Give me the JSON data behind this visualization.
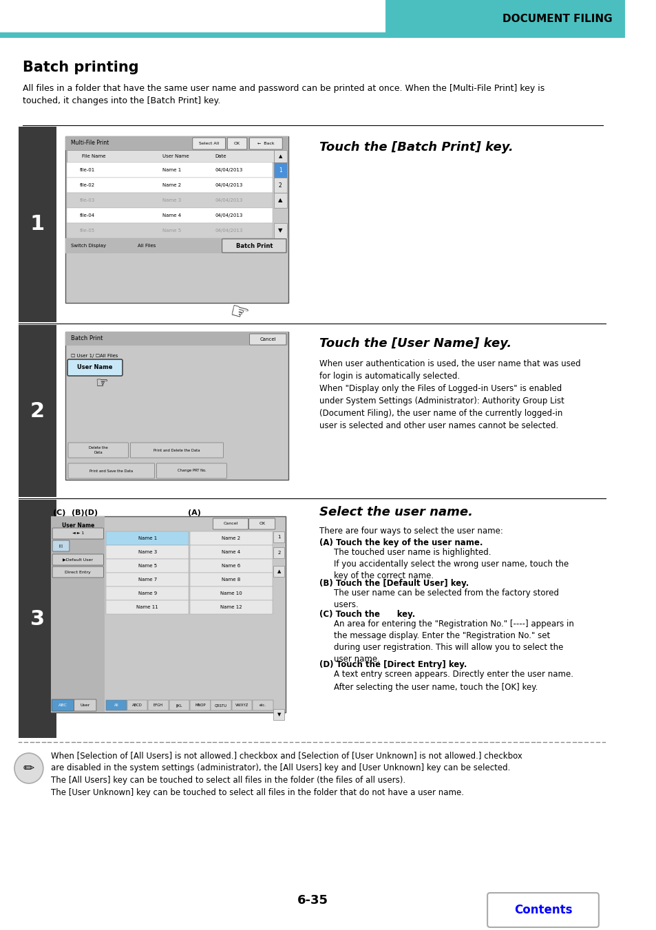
{
  "page_title": "DOCUMENT FILING",
  "header_bar_color": "#4BBFBF",
  "title": "Batch printing",
  "intro_text": "All files in a folder that have the same user name and password can be printed at once. When the [Multi-File Print] key is\ntouched, it changes into the [Batch Print] key.",
  "step1_num": "1",
  "step1_instruction": "Touch the [Batch Print] key.",
  "step2_num": "2",
  "step2_instruction": "Touch the [User Name] key.",
  "step2_detail": "When user authentication is used, the user name that was used\nfor login is automatically selected.\nWhen \"Display only the Files of Logged-in Users\" is enabled\nunder System Settings (Administrator): Authority Group List\n(Document Filing), the user name of the currently logged-in\nuser is selected and other user names cannot be selected.",
  "step3_num": "3",
  "step3_instruction": "Select the user name.",
  "step3_detail_intro": "There are four ways to select the user name:",
  "step3_A_title": "(A) Touch the key of the user name.",
  "step3_A_detail": "The touched user name is highlighted.\nIf you accidentally select the wrong user name, touch the\nkey of the correct name.",
  "step3_B_title": "(B) Touch the [Default User] key.",
  "step3_B_detail": "The user name can be selected from the factory stored\nusers.",
  "step3_C_title": "(C) Touch the      key.",
  "step3_C_detail": "An area for entering the \"Registration No.\" [----] appears in\nthe message display. Enter the \"Registration No.\" set\nduring user registration. This will allow you to select the\nuser name.",
  "step3_D_title": "(D) Touch the [Direct Entry] key.",
  "step3_D_detail": "A text entry screen appears. Directly enter the user name.",
  "step3_after": "After selecting the user name, touch the [OK] key.",
  "note_text": "When [Selection of [All Users] is not allowed.] checkbox and [Selection of [User Unknown] is not allowed.] checkbox\nare disabled in the system settings (administrator), the [All Users] key and [User Unknown] key can be selected.\nThe [All Users] key can be touched to select all files in the folder (the files of all users).\nThe [User Unknown] key can be touched to select all files in the folder that do not have a user name.",
  "page_number": "6-35",
  "contents_button_text": "Contents",
  "header_bar_color2": "#4BBFBF",
  "step_bg": "#3a3a3a",
  "step_fg": "#ffffff"
}
